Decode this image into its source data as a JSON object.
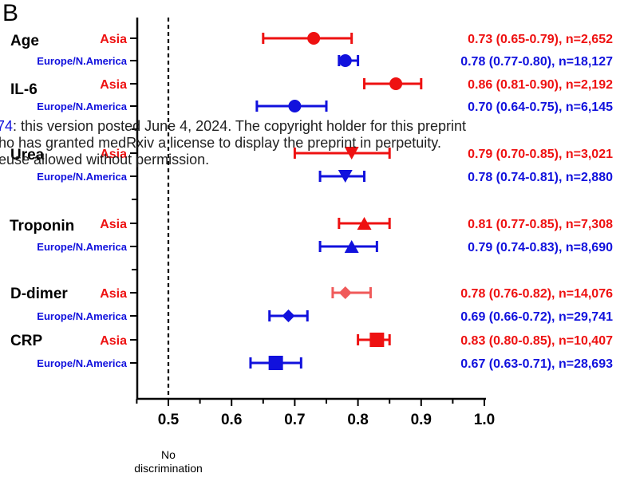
{
  "panel_label": "B",
  "watermark": {
    "line1_prefix": "74",
    "line1_text": ": this version posted June 4, 2024. The copyright holder for this preprint",
    "line2": "ho has granted medRxiv a license to display the preprint in perpetuity.",
    "line3": "euse allowed without permission."
  },
  "colors": {
    "asia": "#ee1111",
    "europe": "#1111dd",
    "d_dimer_asia": "#f05a5a",
    "axis": "#000000"
  },
  "chart_data": {
    "type": "forest",
    "xlim": [
      0.45,
      1.0
    ],
    "xticks": [
      0.5,
      0.6,
      0.7,
      0.8,
      0.9,
      1.0
    ],
    "xtick_labels": [
      "0.5",
      "0.6",
      "0.7",
      "0.8",
      "0.9",
      "1.0"
    ],
    "reference_line": {
      "x": 0.5,
      "label_line1": "No",
      "label_line2": "discrimination"
    },
    "groups": [
      {
        "biomarker": "Age",
        "marker": "circle",
        "rows": [
          {
            "region": "Asia",
            "region_key": "asia",
            "estimate": 0.73,
            "lower": 0.65,
            "upper": 0.79,
            "n": "2,652",
            "label": "0.73 (0.65-0.79), n=2,652"
          },
          {
            "region": "Europe/N.America",
            "region_key": "europe",
            "estimate": 0.78,
            "lower": 0.77,
            "upper": 0.8,
            "n": "18,127",
            "label": "0.78 (0.77-0.80), n=18,127"
          }
        ]
      },
      {
        "biomarker": "IL-6",
        "marker": "circle",
        "rows": [
          {
            "region": "Asia",
            "region_key": "asia",
            "estimate": 0.86,
            "lower": 0.81,
            "upper": 0.9,
            "n": "2,192",
            "label": "0.86 (0.81-0.90), n=2,192"
          },
          {
            "region": "Europe/N.America",
            "region_key": "europe",
            "estimate": 0.7,
            "lower": 0.64,
            "upper": 0.75,
            "n": "6,145",
            "label": "0.70 (0.64-0.75), n=6,145"
          }
        ]
      },
      {
        "biomarker": "Urea",
        "marker": "triangle-down",
        "rows": [
          {
            "region": "Asia",
            "region_key": "asia",
            "estimate": 0.79,
            "lower": 0.7,
            "upper": 0.85,
            "n": "3,021",
            "label": "0.79 (0.70-0.85), n=3,021"
          },
          {
            "region": "Europe/N.America",
            "region_key": "europe",
            "estimate": 0.78,
            "lower": 0.74,
            "upper": 0.81,
            "n": "2,880",
            "label": "0.78 (0.74-0.81), n=2,880"
          }
        ]
      },
      {
        "biomarker": "Troponin",
        "marker": "triangle-up",
        "rows": [
          {
            "region": "Asia",
            "region_key": "asia",
            "estimate": 0.81,
            "lower": 0.77,
            "upper": 0.85,
            "n": "7,308",
            "label": "0.81 (0.77-0.85), n=7,308"
          },
          {
            "region": "Europe/N.America",
            "region_key": "europe",
            "estimate": 0.79,
            "lower": 0.74,
            "upper": 0.83,
            "n": "8,690",
            "label": "0.79 (0.74-0.83), n=8,690"
          }
        ]
      },
      {
        "biomarker": "D-dimer",
        "marker": "diamond",
        "rows": [
          {
            "region": "Asia",
            "region_key": "d_dimer_asia",
            "estimate": 0.78,
            "lower": 0.76,
            "upper": 0.82,
            "n": "14,076",
            "label": "0.78 (0.76-0.82), n=14,076"
          },
          {
            "region": "Europe/N.America",
            "region_key": "europe",
            "estimate": 0.69,
            "lower": 0.66,
            "upper": 0.72,
            "n": "29,741",
            "label": "0.69 (0.66-0.72), n=29,741"
          }
        ]
      },
      {
        "biomarker": "CRP",
        "marker": "square",
        "rows": [
          {
            "region": "Asia",
            "region_key": "asia",
            "estimate": 0.83,
            "lower": 0.8,
            "upper": 0.85,
            "n": "10,407",
            "label": "0.83 (0.80-0.85), n=10,407"
          },
          {
            "region": "Europe/N.America",
            "region_key": "europe",
            "estimate": 0.67,
            "lower": 0.63,
            "upper": 0.71,
            "n": "28,693",
            "label": "0.67 (0.63-0.71), n=28,693"
          }
        ]
      }
    ]
  }
}
